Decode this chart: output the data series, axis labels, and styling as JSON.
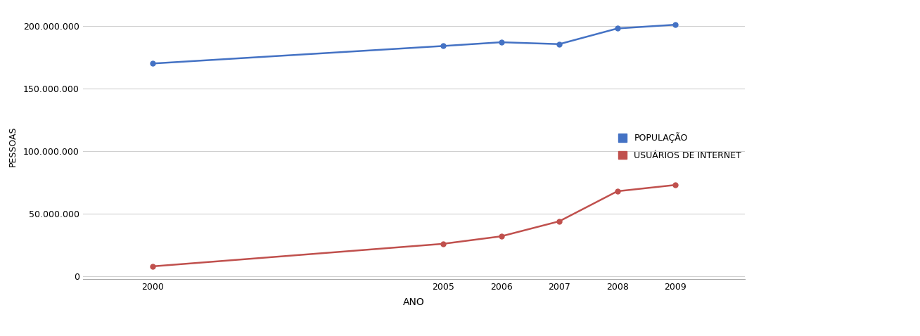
{
  "years": [
    2000,
    2005,
    2006,
    2007,
    2008,
    2009
  ],
  "population": [
    170000000,
    184000000,
    187000000,
    185500000,
    198000000,
    201000000
  ],
  "internet_users": [
    8000000,
    26000000,
    32000000,
    44000000,
    68000000,
    73000000
  ],
  "population_color": "#4472C4",
  "internet_color": "#C0504D",
  "xlabel": "ANO",
  "ylabel": "PESSOAS",
  "ylim_min": 0,
  "ylim_max": 210000000,
  "ytick_step": 50000000,
  "legend_population": "POPULAÇÃO",
  "legend_internet": "USUÁRIOS DE INTERNET",
  "background_color": "#ffffff",
  "grid_color": "#d0d0d0",
  "marker": "o",
  "marker_size": 5,
  "line_width": 1.8
}
